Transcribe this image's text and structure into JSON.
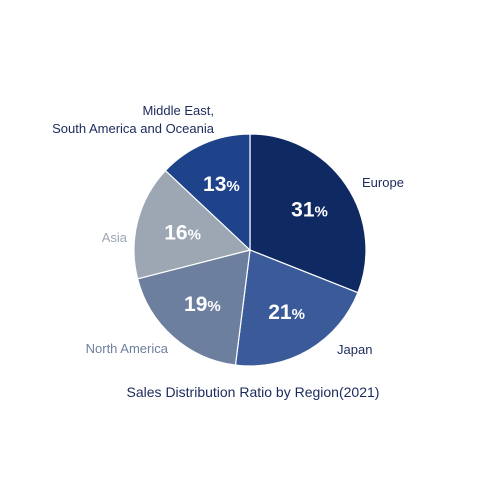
{
  "chart_data": {
    "type": "pie",
    "title": "Sales Distribution Ratio by Region(2021)",
    "unit": "%",
    "start_angle_deg": 0,
    "direction": "clockwise",
    "slices": [
      {
        "label": [
          "Europe"
        ],
        "value": 31,
        "color": "#0f2a62",
        "label_color": "#1b2a5c"
      },
      {
        "label": [
          "Japan"
        ],
        "value": 21,
        "color": "#3b5a9a",
        "label_color": "#1b2a5c"
      },
      {
        "label": [
          "North America"
        ],
        "value": 19,
        "color": "#6d7f9e",
        "label_color": "#6d7f9e"
      },
      {
        "label": [
          "Asia"
        ],
        "value": 16,
        "color": "#9da6b3",
        "label_color": "#9da6b3"
      },
      {
        "label": [
          "Middle East,",
          "South America and Oceania"
        ],
        "value": 13,
        "color": "#1e438a",
        "label_color": "#1b2a5c"
      }
    ]
  }
}
